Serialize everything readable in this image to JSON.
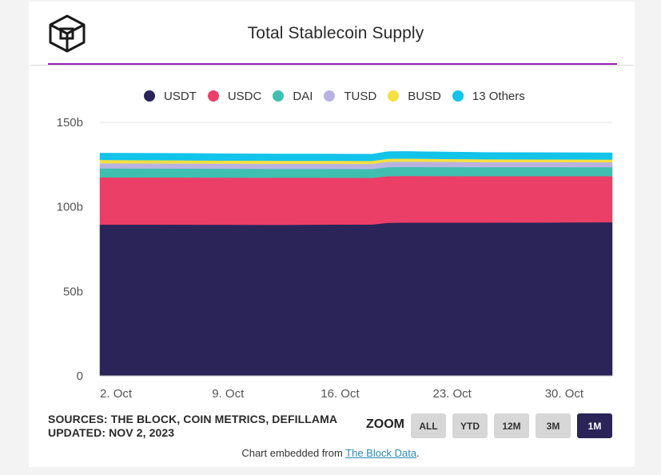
{
  "title": "Total Stablecoin Supply",
  "chart_data": {
    "type": "area",
    "stacked": true,
    "title": "Total Stablecoin Supply",
    "x": [
      "2023-10-01",
      "2023-10-05",
      "2023-10-12",
      "2023-10-15",
      "2023-10-18",
      "2023-10-19",
      "2023-10-20",
      "2023-10-25",
      "2023-10-29",
      "2023-11-02"
    ],
    "x_ticks": [
      "2. Oct",
      "9. Oct",
      "16. Oct",
      "23. Oct",
      "30. Oct"
    ],
    "y_ticks": [
      "150b",
      "100b",
      "50b",
      "0"
    ],
    "ylim": [
      0,
      150
    ],
    "y_unit": "billions",
    "series": [
      {
        "name": "USDT",
        "color": "#2a2458",
        "values": [
          89.5,
          89.5,
          89.4,
          89.5,
          89.6,
          90.6,
          90.7,
          90.7,
          90.8,
          90.9
        ]
      },
      {
        "name": "USDC",
        "color": "#ec3f68",
        "values": [
          28.0,
          27.9,
          27.9,
          27.8,
          27.6,
          27.6,
          27.6,
          27.5,
          27.4,
          27.3
        ]
      },
      {
        "name": "DAI",
        "color": "#3fbfb0",
        "values": [
          5.3,
          5.3,
          5.2,
          5.2,
          5.2,
          5.3,
          5.3,
          5.3,
          5.3,
          5.3
        ]
      },
      {
        "name": "TUSD",
        "color": "#b9b3e0",
        "values": [
          3.0,
          3.0,
          3.0,
          3.0,
          3.0,
          3.2,
          3.2,
          3.0,
          3.0,
          2.9
        ]
      },
      {
        "name": "BUSD",
        "color": "#f5e044",
        "values": [
          2.0,
          1.9,
          1.8,
          1.8,
          1.8,
          1.8,
          1.8,
          1.7,
          1.6,
          1.6
        ]
      },
      {
        "name": "13 Others",
        "color": "#12c3ea",
        "values": [
          4.0,
          4.1,
          4.0,
          4.0,
          4.0,
          4.2,
          4.2,
          4.0,
          4.0,
          4.0
        ]
      }
    ],
    "grid": true,
    "legend": "top"
  },
  "footer": {
    "sources": "SOURCES: THE BLOCK, COIN METRICS, DEFILLAMA",
    "updated": "UPDATED: NOV 2, 2023"
  },
  "zoom": {
    "label": "ZOOM",
    "buttons": [
      "ALL",
      "YTD",
      "12M",
      "3M",
      "1M"
    ],
    "active": "1M"
  },
  "embed": {
    "prefix": "Chart embedded from ",
    "link_text": "The Block Data",
    "suffix": "."
  },
  "logo_icon": "the-block-cube-logo-icon"
}
